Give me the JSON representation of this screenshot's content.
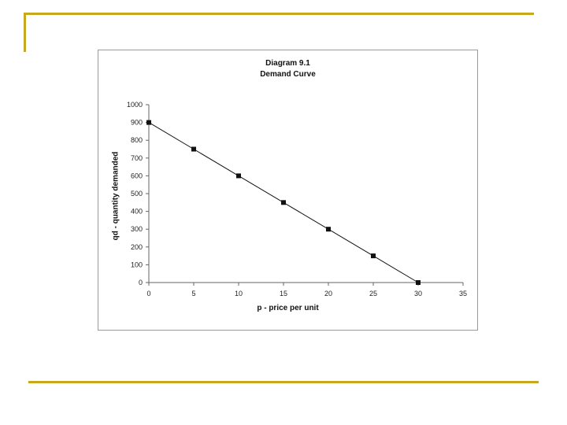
{
  "chart_data": {
    "type": "line",
    "title": "Diagram 9.1",
    "subtitle": "Demand Curve",
    "xlabel": "p - price per unit",
    "ylabel": "qd - quantity demanded",
    "x": [
      0,
      5,
      10,
      15,
      20,
      25,
      30
    ],
    "series": [
      {
        "values": [
          900,
          750,
          600,
          450,
          300,
          150,
          0
        ]
      }
    ],
    "xlim": [
      0,
      35
    ],
    "ylim": [
      0,
      1000
    ],
    "xticks": [
      0,
      5,
      10,
      15,
      20,
      25,
      30,
      35
    ],
    "yticks": [
      0,
      100,
      200,
      300,
      400,
      500,
      600,
      700,
      800,
      900,
      1000
    ],
    "grid": false,
    "legend": "none",
    "marker": "square",
    "line_color": "#111111",
    "accent_color": "#c8a91e"
  }
}
